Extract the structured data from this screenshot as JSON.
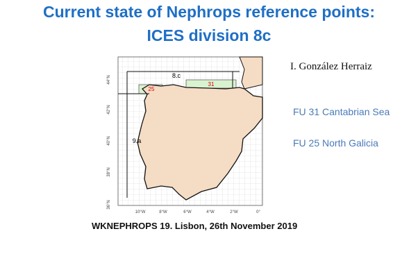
{
  "header": {
    "title_lines": [
      "Current state of Nephrops reference points:",
      "ICES division 8c"
    ]
  },
  "author": "I. González Herraiz",
  "labels": [
    "FU 31 Cantabrian Sea",
    "FU 25 North Galicia"
  ],
  "map": {
    "area_labels": [
      "8.c",
      "9.a"
    ],
    "fu_labels": [
      "25",
      "31"
    ],
    "lat_labels": [
      "44°N",
      "42°N",
      "40°N",
      "38°N",
      "36°N"
    ],
    "lon_labels": [
      "10°W",
      "8°W",
      "6°W",
      "4°W",
      "2°W",
      "0°"
    ]
  },
  "footer": "WKNEPHROPS 19. Lisbon, 26th November 2019"
}
